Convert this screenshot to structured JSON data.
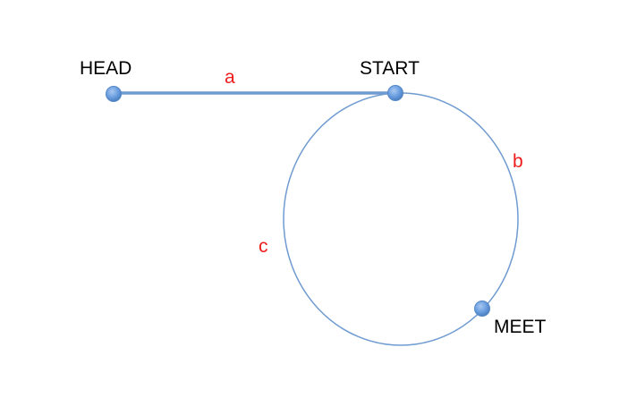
{
  "nodes": {
    "head": {
      "label": "HEAD"
    },
    "start": {
      "label": "START"
    },
    "meet": {
      "label": "MEET"
    }
  },
  "segments": {
    "a": {
      "label": "a"
    },
    "b": {
      "label": "b"
    },
    "c": {
      "label": "c"
    }
  },
  "colors": {
    "line": "#6f9bd1",
    "node_fill": "#6a9ee0",
    "node_stroke": "#4a7fc0",
    "segment_label": "#ee1c1c",
    "node_label": "#000000"
  }
}
